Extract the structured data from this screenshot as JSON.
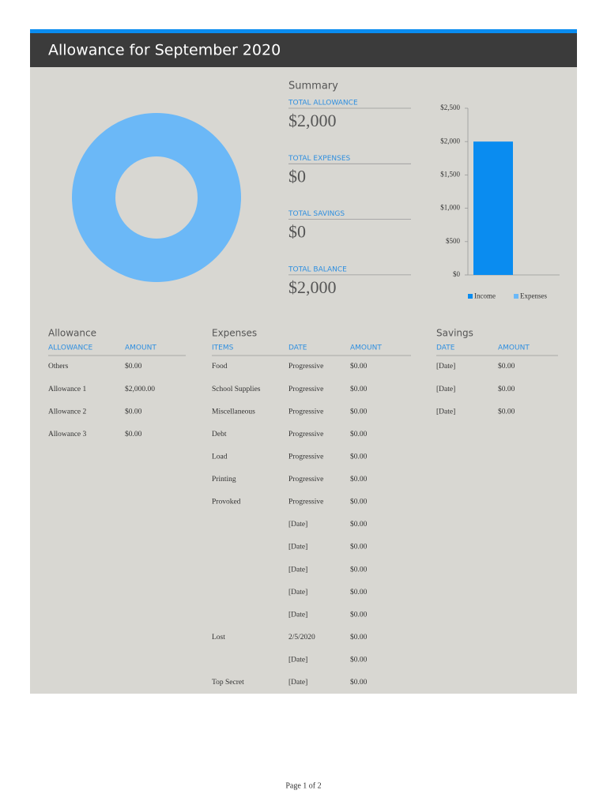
{
  "header": {
    "title": "Allowance for September 2020"
  },
  "summary": {
    "title": "Summary",
    "items": [
      {
        "label": "TOTAL ALLOWANCE",
        "value": "$2,000"
      },
      {
        "label": "TOTAL EXPENSES",
        "value": "$0"
      },
      {
        "label": "TOTAL SAVINGS",
        "value": "$0"
      },
      {
        "label": "TOTAL BALANCE",
        "value": "$2,000"
      }
    ]
  },
  "chart_data": [
    {
      "type": "pie",
      "donut": true,
      "values": [
        2000
      ],
      "colors": [
        "#6bb8f7"
      ]
    },
    {
      "type": "bar",
      "ylim": [
        0,
        2500
      ],
      "yticks": [
        {
          "value": 0,
          "label": "$0"
        },
        {
          "value": 500,
          "label": "$500"
        },
        {
          "value": 1000,
          "label": "$1,000"
        },
        {
          "value": 1500,
          "label": "$1,500"
        },
        {
          "value": 2000,
          "label": "$2,000"
        },
        {
          "value": 2500,
          "label": "$2,500"
        }
      ],
      "series": [
        {
          "name": "Income",
          "color": "#0a8cf0",
          "values": [
            2000
          ]
        },
        {
          "name": "Expenses",
          "color": "#6bb8f7",
          "values": [
            0
          ]
        }
      ]
    }
  ],
  "allowance": {
    "title": "Allowance",
    "columns": [
      "ALLOWANCE",
      "AMOUNT"
    ],
    "rows": [
      [
        "Others",
        "$0.00"
      ],
      [
        "Allowance 1",
        "$2,000.00"
      ],
      [
        "Allowance 2",
        "$0.00"
      ],
      [
        "Allowance 3",
        "$0.00"
      ]
    ]
  },
  "expenses": {
    "title": "Expenses",
    "columns": [
      "ITEMS",
      "DATE",
      "AMOUNT"
    ],
    "rows": [
      [
        "Food",
        "Progressive",
        "$0.00"
      ],
      [
        "School Supplies",
        "Progressive",
        "$0.00"
      ],
      [
        "Miscellaneous",
        "Progressive",
        "$0.00"
      ],
      [
        "Debt",
        "Progressive",
        "$0.00"
      ],
      [
        "Load",
        "Progressive",
        "$0.00"
      ],
      [
        "Printing",
        "Progressive",
        "$0.00"
      ],
      [
        "Provoked",
        "Progressive",
        "$0.00"
      ],
      [
        null,
        "[Date]",
        "$0.00"
      ],
      [
        null,
        "[Date]",
        "$0.00"
      ],
      [
        null,
        "[Date]",
        "$0.00"
      ],
      [
        null,
        "[Date]",
        "$0.00"
      ],
      [
        null,
        "[Date]",
        "$0.00"
      ],
      [
        "Lost",
        "2/5/2020",
        "$0.00"
      ],
      [
        null,
        "[Date]",
        "$0.00"
      ],
      [
        "Top Secret",
        "[Date]",
        "$0.00"
      ]
    ]
  },
  "savings": {
    "title": "Savings",
    "columns": [
      "DATE",
      "AMOUNT"
    ],
    "rows": [
      [
        "[Date]",
        "$0.00"
      ],
      [
        "[Date]",
        "$0.00"
      ],
      [
        "[Date]",
        "$0.00"
      ]
    ]
  },
  "footer": {
    "page": "Page 1 of 2"
  }
}
